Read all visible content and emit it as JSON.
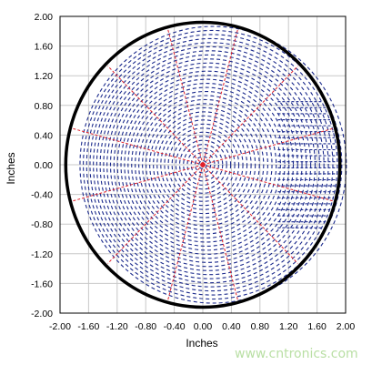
{
  "chart_data": {
    "type": "scatter",
    "title": "",
    "xlabel": "Inches",
    "ylabel": "Inches",
    "xlim": [
      -2.0,
      2.0
    ],
    "ylim": [
      -2.0,
      2.0
    ],
    "x_ticks": [
      "-2.00",
      "-1.60",
      "-1.20",
      "-0.80",
      "-0.40",
      "0.00",
      "0.40",
      "0.80",
      "1.20",
      "1.60",
      "2.00"
    ],
    "y_ticks": [
      "2.00",
      "1.60",
      "1.20",
      "0.80",
      "0.40",
      "0.00",
      "-0.40",
      "-0.80",
      "-1.20",
      "-1.60",
      "-2.00"
    ],
    "grid": true,
    "boundary_circle": {
      "center": [
        0.0,
        0.0
      ],
      "radius": 1.92
    },
    "radial_lines": {
      "count": 12,
      "from_angle_deg": 15,
      "step_deg": 30
    },
    "colors": {
      "boundary": "#000000",
      "field": "#1b2a8c",
      "radial": "#e0202a",
      "grid": "#c8c8c8"
    }
  },
  "watermark": "www.cntronics.com"
}
